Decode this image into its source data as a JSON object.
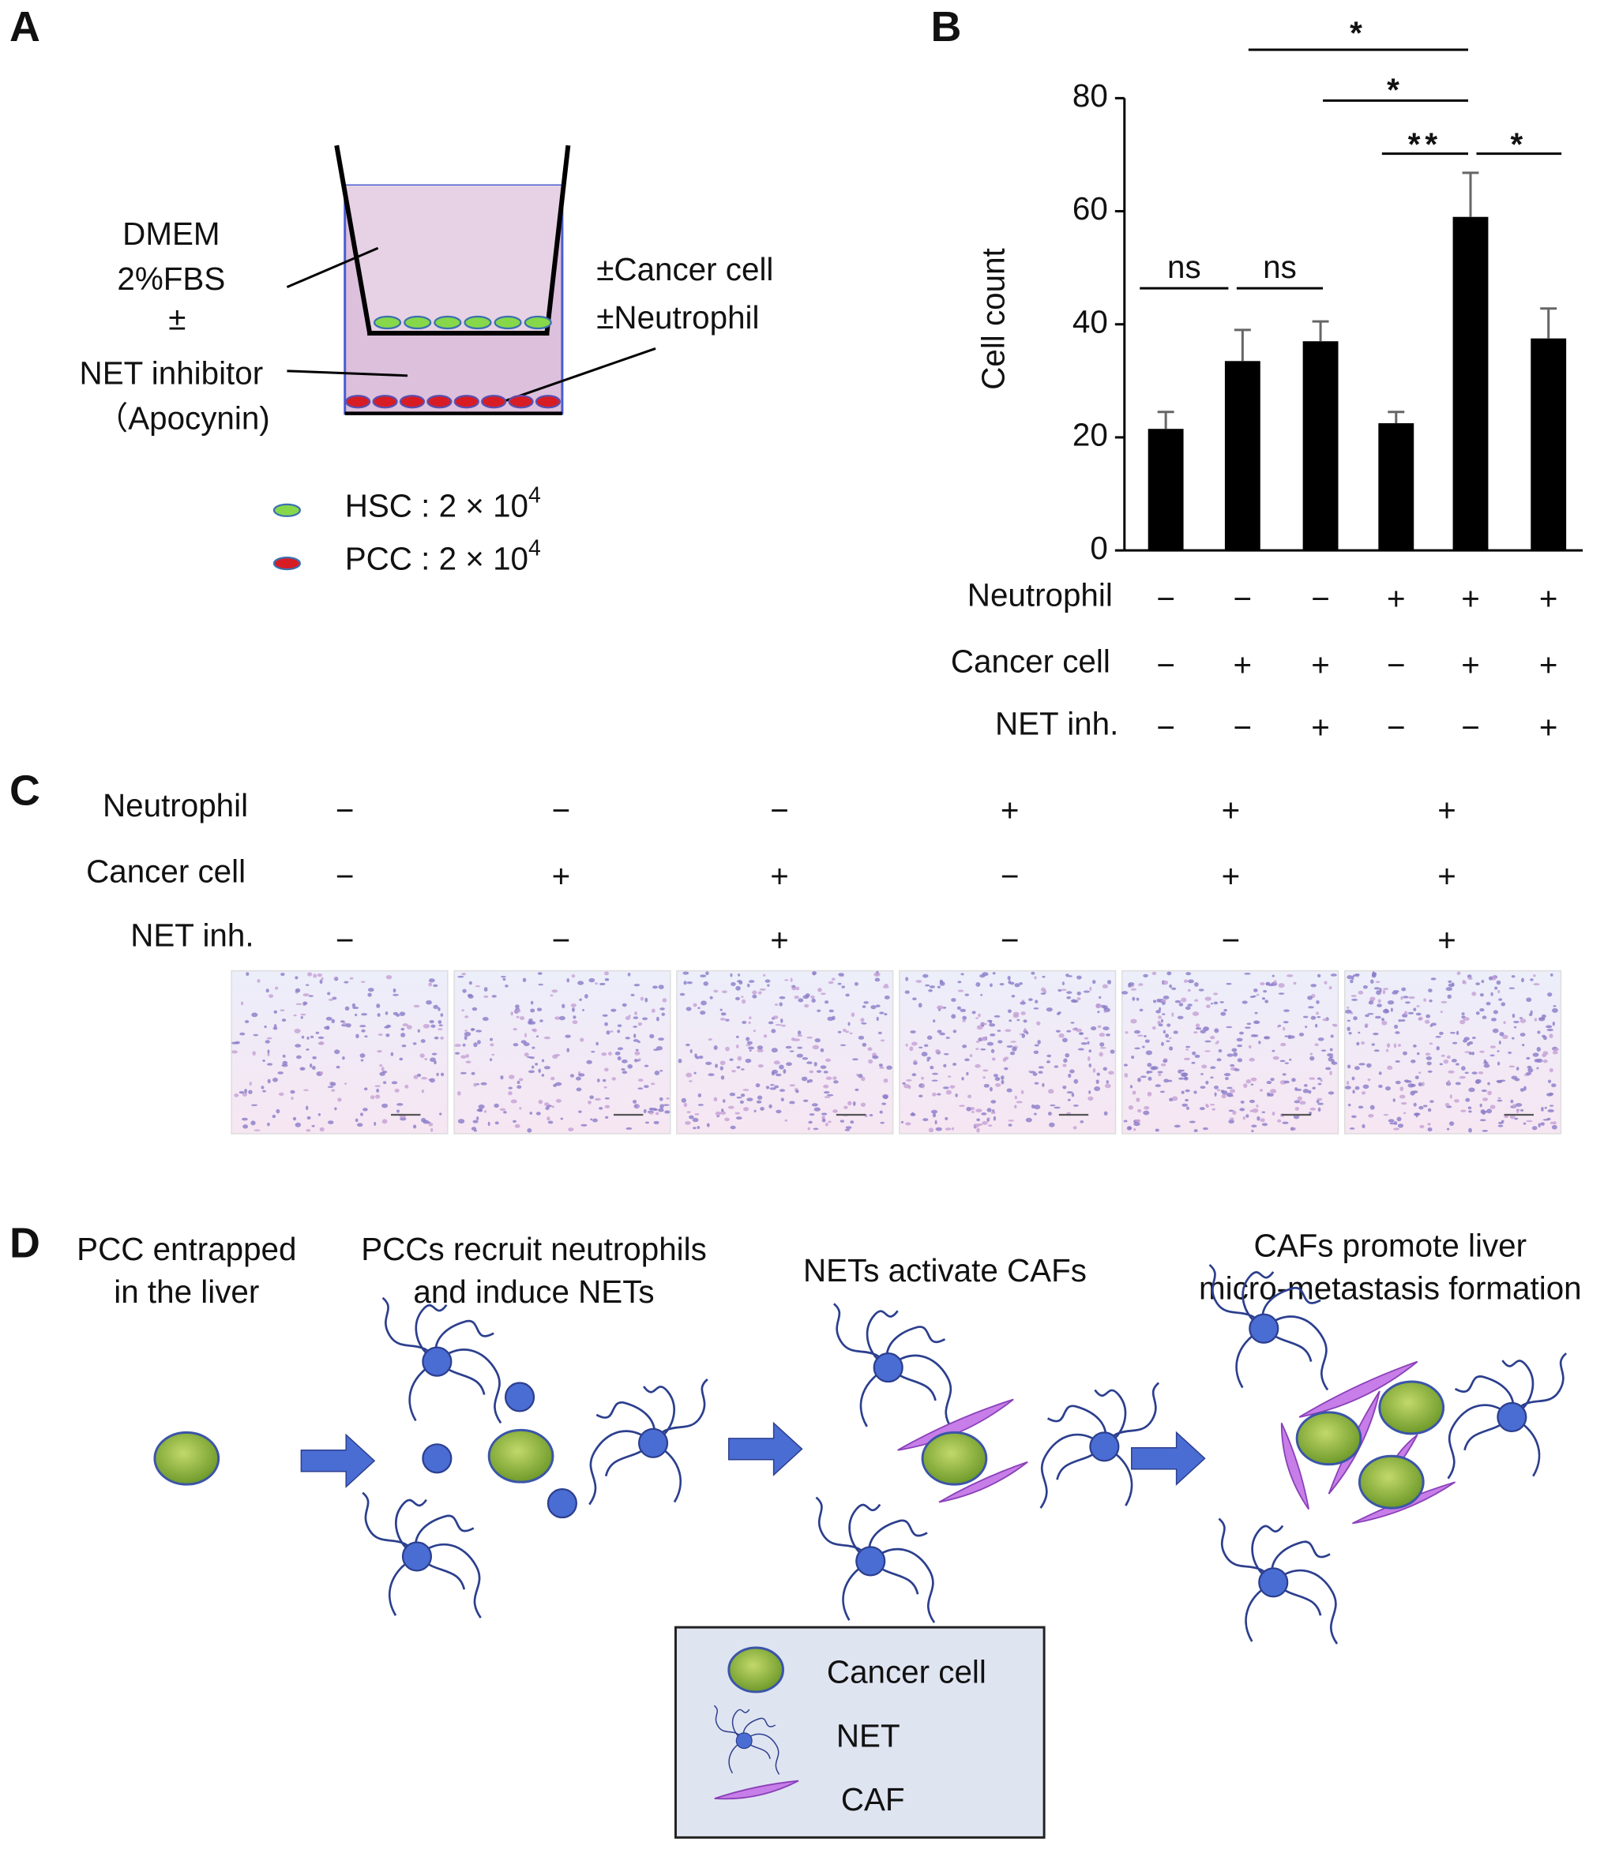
{
  "panels": {
    "A": {
      "letter": "A",
      "medium": [
        "DMEM",
        "2%FBS",
        "±",
        "NET inhibitor",
        "（Apocynin)"
      ],
      "insert_labels": [
        "±Cancer cell",
        "±Neutrophil"
      ],
      "legend": [
        {
          "label": "HSC : 2 × 10",
          "exponent": "4"
        },
        {
          "label": "PCC : 2 × 10",
          "exponent": "4"
        }
      ]
    },
    "B": {
      "letter": "B"
    },
    "C": {
      "letter": "C",
      "rows": [
        "Neutrophil",
        "Cancer cell",
        "NET inh."
      ],
      "cells": [
        [
          "−",
          "−",
          "−",
          "+",
          "+",
          "+"
        ],
        [
          "−",
          "+",
          "+",
          "−",
          "+",
          "+"
        ],
        [
          "−",
          "−",
          "+",
          "−",
          "−",
          "+"
        ]
      ]
    },
    "D": {
      "letter": "D",
      "steps": [
        [
          "PCC entrapped",
          "in the liver"
        ],
        [
          "PCCs recruit neutrophils",
          "and induce NETs"
        ],
        [
          "NETs activate CAFs"
        ],
        [
          "CAFs promote liver",
          "micro-metastasis formation"
        ]
      ],
      "legend": [
        "Cancer cell",
        "NET",
        "CAF"
      ]
    }
  },
  "chart_data": {
    "type": "bar",
    "ylabel": "Cell count",
    "values": [
      21.5,
      33.5,
      37,
      22.5,
      59,
      37.5
    ],
    "errors": [
      3,
      5.5,
      3.5,
      2,
      7.8,
      5.3
    ],
    "color": "#000000",
    "ylim": [
      0,
      80
    ],
    "yticks": [
      0,
      20,
      40,
      60,
      80
    ],
    "significance": [
      "ns",
      "ns",
      "*",
      "*",
      "**",
      "*"
    ],
    "conditions": {
      "rows": [
        "Neutrophil",
        "Cancer cell",
        "NET inh."
      ],
      "cells": [
        [
          "−",
          "−",
          "−",
          "+",
          "+",
          "+"
        ],
        [
          "−",
          "+",
          "+",
          "−",
          "+",
          "+"
        ],
        [
          "−",
          "−",
          "+",
          "−",
          "−",
          "+"
        ]
      ]
    }
  }
}
